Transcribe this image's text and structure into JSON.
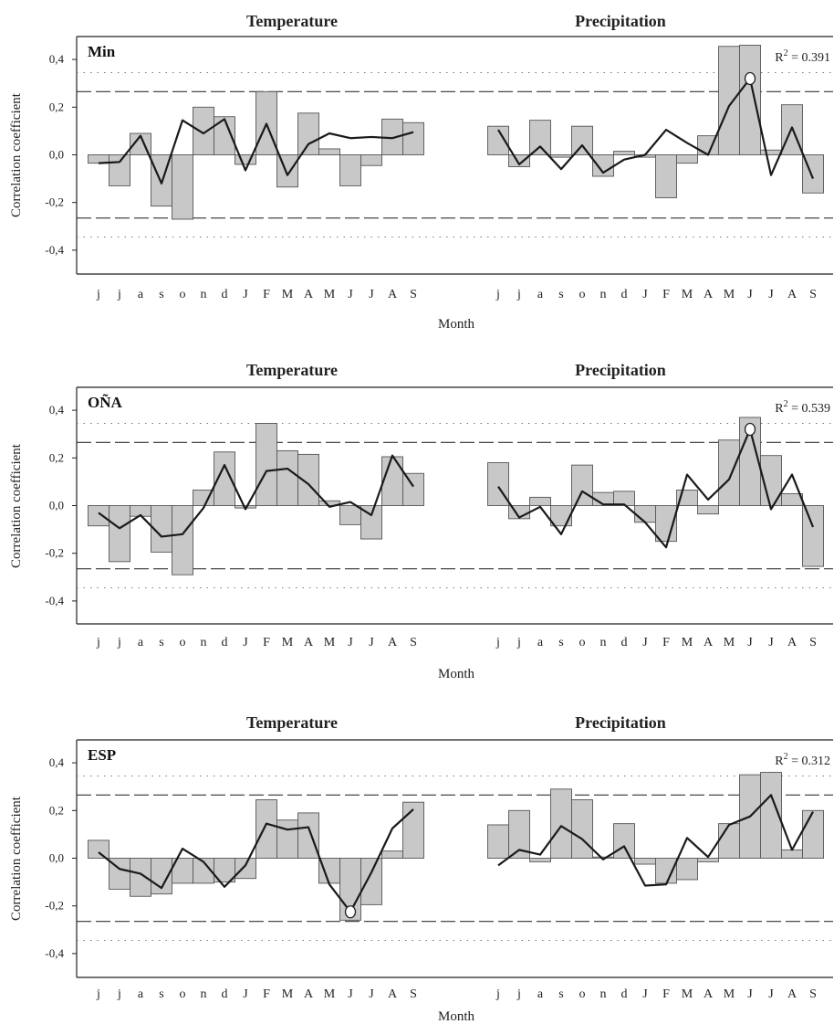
{
  "colors": {
    "bar_fill": "#c8c8c8",
    "bar_stroke": "#555555",
    "line": "#1a1a1a",
    "dash": "#333333",
    "dot": "#777777"
  },
  "chart_data": [
    {
      "type": "bar",
      "site": "Min",
      "panel_titles": [
        "Temperature",
        "Precipitation"
      ],
      "r2_label": "R",
      "r2_sup": "2",
      "r2_value": " = 0.391",
      "ylabel": "Correlation coefficient",
      "xlabel": "Month",
      "ylim": [
        -0.5,
        0.5
      ],
      "yticks": [
        "0,4",
        "0,2",
        "0,0",
        "-0,2",
        "-0,4"
      ],
      "yticks_values": [
        0.4,
        0.2,
        0.0,
        -0.2,
        -0.4
      ],
      "thresholds": {
        "dashed": [
          0.265,
          -0.265
        ],
        "dotted": [
          0.345,
          -0.345
        ]
      },
      "categories_temp": [
        "j",
        "j",
        "a",
        "s",
        "o",
        "n",
        "d",
        "J",
        "F",
        "M",
        "A",
        "M",
        "J",
        "J",
        "A",
        "S"
      ],
      "categories_prec": [
        "j",
        "j",
        "a",
        "s",
        "o",
        "n",
        "d",
        "J",
        "F",
        "M",
        "A",
        "M",
        "J",
        "J",
        "A",
        "S"
      ],
      "series": [
        {
          "name": "Temperature",
          "bars": [
            -0.035,
            -0.13,
            0.09,
            -0.215,
            -0.27,
            0.2,
            0.16,
            -0.04,
            0.265,
            -0.135,
            0.175,
            0.025,
            -0.13,
            -0.045,
            0.15,
            0.135
          ],
          "line": [
            -0.035,
            -0.03,
            0.08,
            -0.12,
            0.145,
            0.09,
            0.15,
            -0.065,
            0.13,
            -0.085,
            0.045,
            0.09,
            0.07,
            0.075,
            0.07,
            0.095
          ]
        },
        {
          "name": "Precipitation",
          "bars": [
            0.12,
            -0.05,
            0.145,
            -0.01,
            0.12,
            -0.09,
            0.015,
            -0.01,
            -0.18,
            -0.035,
            0.08,
            0.455,
            0.46,
            0.02,
            0.21,
            -0.16
          ],
          "line": [
            0.105,
            -0.04,
            0.035,
            -0.06,
            0.04,
            -0.075,
            -0.02,
            0.0,
            0.105,
            0.05,
            0.0,
            0.205,
            0.32,
            -0.085,
            0.115,
            -0.1
          ]
        }
      ],
      "highlight": {
        "series": 1,
        "index": 12,
        "value": 0.32
      }
    },
    {
      "type": "bar",
      "site": "OÑA",
      "panel_titles": [
        "Temperature",
        "Precipitation"
      ],
      "r2_label": "R",
      "r2_sup": "2",
      "r2_value": " = 0.539",
      "ylabel": "Correlation coefficient",
      "xlabel": "Month",
      "ylim": [
        -0.5,
        0.5
      ],
      "yticks": [
        "0,4",
        "0,2",
        "0,0",
        "-0,2",
        "-0,4"
      ],
      "yticks_values": [
        0.4,
        0.2,
        0.0,
        -0.2,
        -0.4
      ],
      "thresholds": {
        "dashed": [
          0.265,
          -0.265
        ],
        "dotted": [
          0.345,
          -0.345
        ]
      },
      "categories_temp": [
        "j",
        "j",
        "a",
        "s",
        "o",
        "n",
        "d",
        "J",
        "F",
        "M",
        "A",
        "M",
        "J",
        "J",
        "A",
        "S"
      ],
      "categories_prec": [
        "j",
        "j",
        "a",
        "s",
        "o",
        "n",
        "d",
        "J",
        "F",
        "M",
        "A",
        "M",
        "J",
        "J",
        "A",
        "S"
      ],
      "series": [
        {
          "name": "Temperature",
          "bars": [
            -0.085,
            -0.235,
            -0.045,
            -0.195,
            -0.29,
            0.065,
            0.225,
            -0.01,
            0.345,
            0.23,
            0.215,
            0.02,
            -0.08,
            -0.14,
            0.205,
            0.135
          ],
          "line": [
            -0.03,
            -0.095,
            -0.04,
            -0.13,
            -0.12,
            -0.01,
            0.17,
            -0.015,
            0.145,
            0.155,
            0.09,
            -0.005,
            0.015,
            -0.04,
            0.21,
            0.08
          ]
        },
        {
          "name": "Precipitation",
          "bars": [
            0.18,
            -0.055,
            0.035,
            -0.085,
            0.17,
            0.055,
            0.06,
            -0.07,
            -0.15,
            0.065,
            -0.035,
            0.275,
            0.37,
            0.21,
            0.05,
            -0.255
          ],
          "line": [
            0.08,
            -0.05,
            -0.005,
            -0.12,
            0.06,
            0.005,
            0.005,
            -0.07,
            -0.175,
            0.13,
            0.025,
            0.11,
            0.32,
            -0.015,
            0.13,
            -0.09
          ]
        }
      ],
      "highlight": {
        "series": 1,
        "index": 12,
        "value": 0.32
      }
    },
    {
      "type": "bar",
      "site": "ESP",
      "panel_titles": [
        "Temperature",
        "Precipitation"
      ],
      "r2_label": "R",
      "r2_sup": "2",
      "r2_value": " = 0.312",
      "ylabel": "Correlation coefficient",
      "xlabel": "Month",
      "ylim": [
        -0.5,
        0.5
      ],
      "yticks": [
        "0,4",
        "0,2",
        "0,0",
        "-0,2",
        "-0,4"
      ],
      "yticks_values": [
        0.4,
        0.2,
        0.0,
        -0.2,
        -0.4
      ],
      "thresholds": {
        "dashed": [
          0.265,
          -0.265
        ],
        "dotted": [
          0.345,
          -0.345
        ]
      },
      "categories_temp": [
        "j",
        "j",
        "a",
        "s",
        "o",
        "n",
        "d",
        "J",
        "F",
        "M",
        "A",
        "M",
        "J",
        "J",
        "A",
        "S"
      ],
      "categories_prec": [
        "j",
        "j",
        "a",
        "s",
        "o",
        "n",
        "d",
        "J",
        "F",
        "M",
        "A",
        "M",
        "J",
        "J",
        "A",
        "S"
      ],
      "series": [
        {
          "name": "Temperature",
          "bars": [
            0.075,
            -0.13,
            -0.16,
            -0.15,
            -0.105,
            -0.105,
            -0.1,
            -0.085,
            0.245,
            0.16,
            0.19,
            -0.105,
            -0.26,
            -0.195,
            0.03,
            0.235
          ],
          "line": [
            0.025,
            -0.045,
            -0.065,
            -0.125,
            0.04,
            -0.015,
            -0.12,
            -0.03,
            0.145,
            0.12,
            0.13,
            -0.11,
            -0.225,
            -0.06,
            0.125,
            0.205
          ]
        },
        {
          "name": "Precipitation",
          "bars": [
            0.14,
            0.2,
            -0.015,
            0.29,
            0.245,
            0.005,
            0.145,
            -0.025,
            -0.105,
            -0.09,
            -0.015,
            0.145,
            0.35,
            0.36,
            0.035,
            0.2
          ],
          "line": [
            -0.03,
            0.035,
            0.015,
            0.135,
            0.08,
            -0.005,
            0.05,
            -0.115,
            -0.11,
            0.085,
            0.005,
            0.14,
            0.175,
            0.265,
            0.035,
            0.195
          ]
        }
      ],
      "highlight": {
        "series": 0,
        "index": 12,
        "value": -0.225
      }
    }
  ]
}
